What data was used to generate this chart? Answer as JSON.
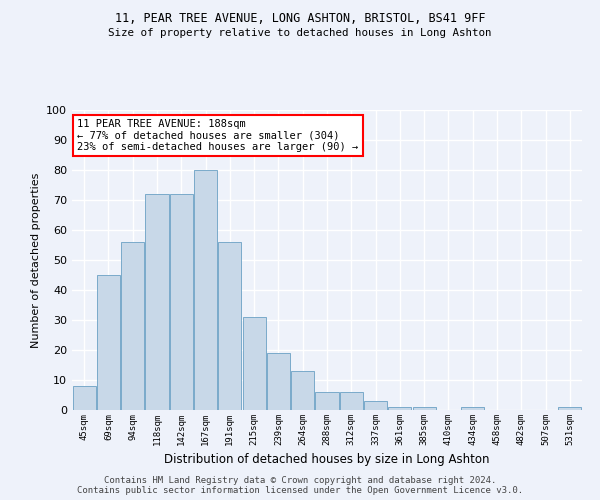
{
  "title1": "11, PEAR TREE AVENUE, LONG ASHTON, BRISTOL, BS41 9FF",
  "title2": "Size of property relative to detached houses in Long Ashton",
  "xlabel": "Distribution of detached houses by size in Long Ashton",
  "ylabel": "Number of detached properties",
  "categories": [
    "45sqm",
    "69sqm",
    "94sqm",
    "118sqm",
    "142sqm",
    "167sqm",
    "191sqm",
    "215sqm",
    "239sqm",
    "264sqm",
    "288sqm",
    "312sqm",
    "337sqm",
    "361sqm",
    "385sqm",
    "410sqm",
    "434sqm",
    "458sqm",
    "482sqm",
    "507sqm",
    "531sqm"
  ],
  "values": [
    8,
    45,
    56,
    72,
    72,
    80,
    56,
    31,
    19,
    13,
    6,
    6,
    3,
    1,
    1,
    0,
    1,
    0,
    0,
    0,
    1
  ],
  "bar_color": "#c8d8e8",
  "bar_edge_color": "#7aaaca",
  "annotation_line1": "11 PEAR TREE AVENUE: 188sqm",
  "annotation_line2": "← 77% of detached houses are smaller (304)",
  "annotation_line3": "23% of semi-detached houses are larger (90) →",
  "annotation_box_color": "white",
  "annotation_box_edge_color": "red",
  "yticks": [
    0,
    10,
    20,
    30,
    40,
    50,
    60,
    70,
    80,
    90,
    100
  ],
  "ylim": [
    0,
    100
  ],
  "background_color": "#eef2fa",
  "grid_color": "#ffffff",
  "footer1": "Contains HM Land Registry data © Crown copyright and database right 2024.",
  "footer2": "Contains public sector information licensed under the Open Government Licence v3.0."
}
